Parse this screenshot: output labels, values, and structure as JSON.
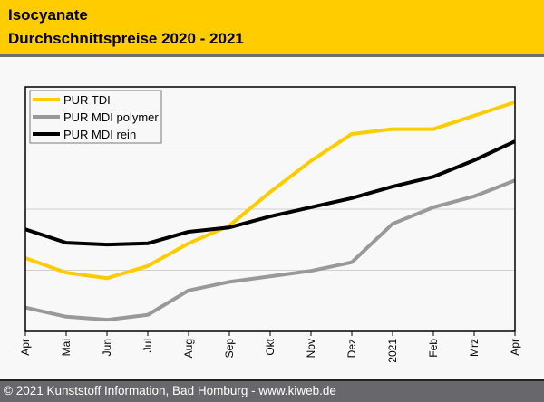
{
  "header": {
    "title_line1": "Isocyanate",
    "title_line2": "Durchschnittspreise 2020 - 2021"
  },
  "footer": {
    "copyright": "© 2021 Kunststoff Information, Bad Homburg - www.kiweb.de"
  },
  "chart_data": {
    "type": "line",
    "title": "Isocyanate Durchschnittspreise 2020 - 2021",
    "xlabel": "",
    "ylabel": "",
    "y_axis_note": "no y-axis tick labels shown; values on relative scale where gridlines are at 1, 2, 3",
    "ylim": [
      0,
      4
    ],
    "grid": true,
    "legend_position": "top-left",
    "categories": [
      "Apr",
      "Mai",
      "Jun",
      "Jul",
      "Aug",
      "Sep",
      "Okt",
      "Nov",
      "Dez",
      "2021",
      "Feb",
      "Mrz",
      "Apr"
    ],
    "series": [
      {
        "name": "PUR TDI",
        "color": "#ffcc00",
        "values": [
          1.2,
          0.96,
          0.87,
          1.07,
          1.44,
          1.73,
          2.28,
          2.79,
          3.23,
          3.31,
          3.31,
          3.53,
          3.75
        ]
      },
      {
        "name": "PUR MDI polymer",
        "color": "#999999",
        "values": [
          0.39,
          0.24,
          0.19,
          0.27,
          0.67,
          0.81,
          0.9,
          0.99,
          1.13,
          1.76,
          2.03,
          2.21,
          2.47
        ]
      },
      {
        "name": "PUR MDI rein",
        "color": "#000000",
        "values": [
          1.67,
          1.45,
          1.42,
          1.44,
          1.63,
          1.7,
          1.88,
          2.03,
          2.18,
          2.37,
          2.53,
          2.8,
          3.11
        ]
      }
    ],
    "gridlines": [
      1,
      2,
      3
    ]
  }
}
